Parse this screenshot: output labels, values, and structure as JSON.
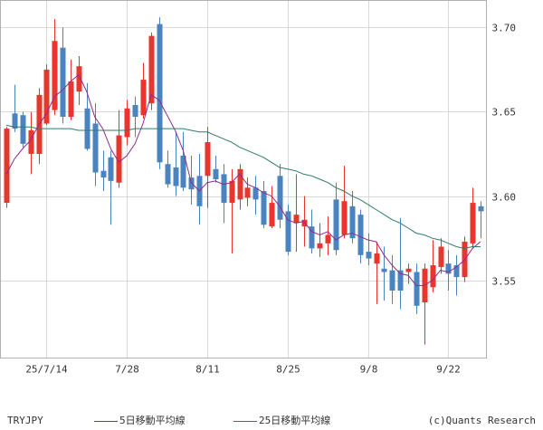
{
  "footer": {
    "symbol": "TRYJPY",
    "copyright": "(c)Quants Research"
  },
  "chart_data": {
    "type": "bar",
    "style": "candlestick",
    "symbol": "TRYJPY",
    "title": "",
    "xlabel": "",
    "ylabel": "",
    "ylim": [
      3.504,
      3.716
    ],
    "grid": true,
    "legend_position": "bottom",
    "yticks": [
      {
        "value": 3.55,
        "label": "3.55"
      },
      {
        "value": 3.6,
        "label": "3.60"
      },
      {
        "value": 3.65,
        "label": "3.65"
      },
      {
        "value": 3.7,
        "label": "3.70"
      }
    ],
    "xticks": [
      {
        "date": "2025-07-14",
        "label": "25/7/14"
      },
      {
        "date": "2025-07-28",
        "label": "7/28"
      },
      {
        "date": "2025-08-11",
        "label": "8/11"
      },
      {
        "date": "2025-08-25",
        "label": "8/25"
      },
      {
        "date": "2025-09-08",
        "label": "9/8"
      },
      {
        "date": "2025-09-22",
        "label": "9/22"
      }
    ],
    "colors": {
      "up": "#e8352e",
      "down": "#4a84c0",
      "ma5": "#8e2a8e",
      "ma25": "#2f7b6b",
      "grid": "#d9d9d9",
      "frame": "#b0b0b0"
    },
    "dates": [
      "2025-07-07",
      "2025-07-08",
      "2025-07-09",
      "2025-07-10",
      "2025-07-11",
      "2025-07-14",
      "2025-07-15",
      "2025-07-16",
      "2025-07-17",
      "2025-07-18",
      "2025-07-21",
      "2025-07-22",
      "2025-07-23",
      "2025-07-24",
      "2025-07-25",
      "2025-07-28",
      "2025-07-29",
      "2025-07-30",
      "2025-07-31",
      "2025-08-01",
      "2025-08-04",
      "2025-08-05",
      "2025-08-06",
      "2025-08-07",
      "2025-08-08",
      "2025-08-11",
      "2025-08-12",
      "2025-08-13",
      "2025-08-14",
      "2025-08-15",
      "2025-08-18",
      "2025-08-19",
      "2025-08-20",
      "2025-08-21",
      "2025-08-22",
      "2025-08-25",
      "2025-08-26",
      "2025-08-27",
      "2025-08-28",
      "2025-08-29",
      "2025-09-01",
      "2025-09-02",
      "2025-09-03",
      "2025-09-04",
      "2025-09-05",
      "2025-09-08",
      "2025-09-09",
      "2025-09-10",
      "2025-09-11",
      "2025-09-12",
      "2025-09-15",
      "2025-09-16",
      "2025-09-17",
      "2025-09-18",
      "2025-09-19",
      "2025-09-22",
      "2025-09-23",
      "2025-09-24",
      "2025-09-25",
      "2025-09-26"
    ],
    "open": [
      3.596,
      3.649,
      3.648,
      3.625,
      3.625,
      3.643,
      3.651,
      3.688,
      3.647,
      3.662,
      3.652,
      3.643,
      3.615,
      3.623,
      3.608,
      3.635,
      3.654,
      3.648,
      3.655,
      3.702,
      3.619,
      3.617,
      3.624,
      3.611,
      3.612,
      3.612,
      3.616,
      3.613,
      3.596,
      3.598,
      3.599,
      3.605,
      3.603,
      3.582,
      3.612,
      3.591,
      3.584,
      3.582,
      3.582,
      3.569,
      3.572,
      3.598,
      3.577,
      3.594,
      3.589,
      3.567,
      3.56,
      3.557,
      3.556,
      3.556,
      3.555,
      3.555,
      3.537,
      3.546,
      3.558,
      3.56,
      3.559,
      3.552,
      3.572,
      3.594
    ],
    "high": [
      3.641,
      3.666,
      3.65,
      3.65,
      3.664,
      3.678,
      3.705,
      3.7,
      3.681,
      3.683,
      3.667,
      3.655,
      3.627,
      3.627,
      3.651,
      3.657,
      3.659,
      3.679,
      3.697,
      3.706,
      3.627,
      3.638,
      3.638,
      3.624,
      3.625,
      3.641,
      3.624,
      3.619,
      3.616,
      3.619,
      3.611,
      3.612,
      3.609,
      3.606,
      3.619,
      3.595,
      3.613,
      3.6,
      3.592,
      3.584,
      3.588,
      3.608,
      3.618,
      3.603,
      3.592,
      3.578,
      3.573,
      3.57,
      3.565,
      3.587,
      3.56,
      3.56,
      3.56,
      3.574,
      3.575,
      3.568,
      3.565,
      3.576,
      3.605,
      3.597
    ],
    "low": [
      3.593,
      3.638,
      3.629,
      3.613,
      3.619,
      3.642,
      3.648,
      3.643,
      3.645,
      3.654,
      3.627,
      3.606,
      3.603,
      3.583,
      3.605,
      3.63,
      3.635,
      3.646,
      3.651,
      3.616,
      3.605,
      3.6,
      3.603,
      3.595,
      3.583,
      3.593,
      3.608,
      3.584,
      3.566,
      3.592,
      3.594,
      3.589,
      3.581,
      3.581,
      3.581,
      3.565,
      3.567,
      3.57,
      3.566,
      3.564,
      3.565,
      3.565,
      3.575,
      3.572,
      3.56,
      3.559,
      3.536,
      3.538,
      3.536,
      3.533,
      3.548,
      3.53,
      3.512,
      3.543,
      3.554,
      3.544,
      3.541,
      3.549,
      3.569,
      3.575
    ],
    "close": [
      3.64,
      3.64,
      3.631,
      3.639,
      3.66,
      3.675,
      3.692,
      3.647,
      3.668,
      3.677,
      3.628,
      3.614,
      3.611,
      3.609,
      3.636,
      3.652,
      3.647,
      3.669,
      3.695,
      3.62,
      3.607,
      3.606,
      3.605,
      3.604,
      3.594,
      3.632,
      3.61,
      3.596,
      3.609,
      3.616,
      3.605,
      3.598,
      3.583,
      3.596,
      3.586,
      3.567,
      3.589,
      3.586,
      3.569,
      3.572,
      3.577,
      3.568,
      3.597,
      3.575,
      3.565,
      3.563,
      3.566,
      3.555,
      3.544,
      3.544,
      3.557,
      3.535,
      3.557,
      3.559,
      3.57,
      3.554,
      3.552,
      3.573,
      3.596,
      3.591
    ],
    "series": [
      {
        "name": "5日移動平均線",
        "values": [
          3.613,
          3.622,
          3.628,
          3.633,
          3.642,
          3.649,
          3.659,
          3.663,
          3.668,
          3.672,
          3.662,
          3.647,
          3.64,
          3.628,
          3.62,
          3.624,
          3.631,
          3.643,
          3.66,
          3.657,
          3.648,
          3.639,
          3.627,
          3.608,
          3.603,
          3.608,
          3.609,
          3.607,
          3.608,
          3.613,
          3.607,
          3.605,
          3.602,
          3.6,
          3.594,
          3.586,
          3.584,
          3.585,
          3.579,
          3.577,
          3.579,
          3.574,
          3.577,
          3.578,
          3.576,
          3.574,
          3.573,
          3.565,
          3.559,
          3.554,
          3.553,
          3.547,
          3.547,
          3.55,
          3.556,
          3.555,
          3.558,
          3.562,
          3.569,
          3.573
        ]
      },
      {
        "name": "25日移動平均線",
        "values": [
          3.642,
          3.641,
          3.641,
          3.641,
          3.64,
          3.64,
          3.64,
          3.64,
          3.64,
          3.639,
          3.639,
          3.639,
          3.639,
          3.639,
          3.639,
          3.639,
          3.64,
          3.64,
          3.64,
          3.64,
          3.64,
          3.64,
          3.64,
          3.639,
          3.638,
          3.638,
          3.636,
          3.634,
          3.632,
          3.629,
          3.627,
          3.625,
          3.623,
          3.62,
          3.617,
          3.616,
          3.615,
          3.613,
          3.612,
          3.61,
          3.608,
          3.605,
          3.603,
          3.6,
          3.598,
          3.595,
          3.592,
          3.589,
          3.586,
          3.584,
          3.581,
          3.578,
          3.577,
          3.575,
          3.574,
          3.572,
          3.57,
          3.569,
          3.57,
          3.57
        ]
      }
    ]
  }
}
